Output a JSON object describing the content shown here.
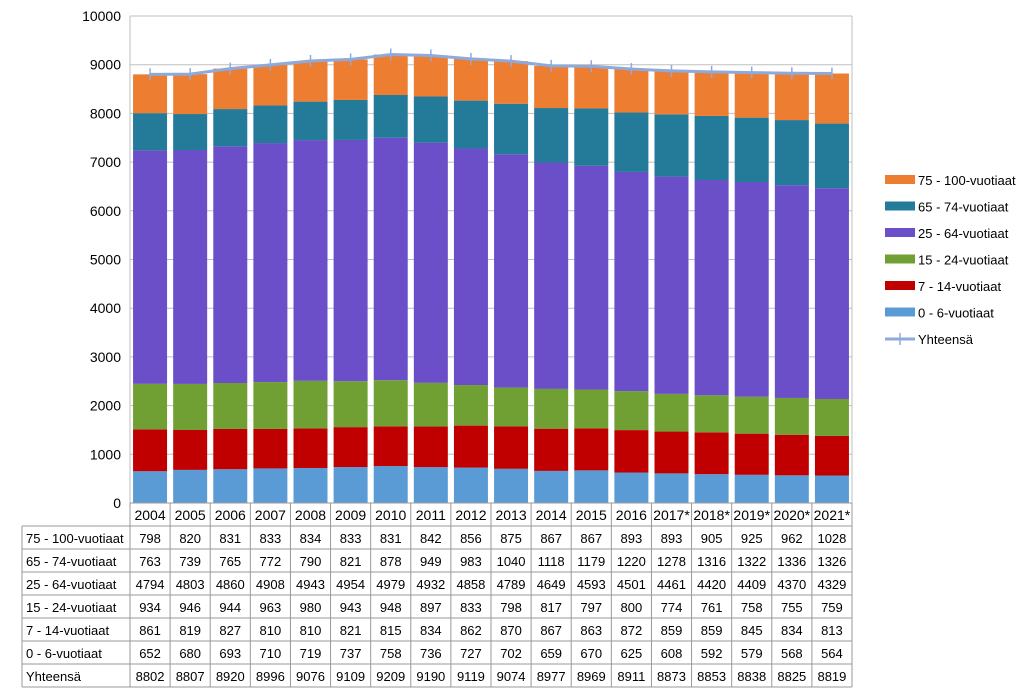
{
  "chart_data": {
    "type": "bar",
    "stacked": true,
    "categories": [
      "2004",
      "2005",
      "2006",
      "2007",
      "2008",
      "2009",
      "2010",
      "2011",
      "2012",
      "2013",
      "2014",
      "2015",
      "2016",
      "2017*",
      "2018*",
      "2019*",
      "2020*",
      "2021*"
    ],
    "ylim": [
      0,
      10000
    ],
    "yticks": [
      0,
      1000,
      2000,
      3000,
      4000,
      5000,
      6000,
      7000,
      8000,
      9000,
      10000
    ],
    "grid": true,
    "legend_position": "right",
    "series": [
      {
        "name": "0 - 6-vuotiaat",
        "color": "#5b9bd5",
        "values": [
          652,
          680,
          693,
          710,
          719,
          737,
          758,
          736,
          727,
          702,
          659,
          670,
          625,
          608,
          592,
          579,
          568,
          564
        ]
      },
      {
        "name": "7 - 14-vuotiaat",
        "color": "#c00000",
        "values": [
          861,
          819,
          827,
          810,
          810,
          821,
          815,
          834,
          862,
          870,
          867,
          863,
          872,
          859,
          859,
          845,
          834,
          813
        ]
      },
      {
        "name": "15 - 24-vuotiaat",
        "color": "#70a033",
        "values": [
          934,
          946,
          944,
          963,
          980,
          943,
          948,
          897,
          833,
          798,
          817,
          797,
          800,
          774,
          761,
          758,
          755,
          759
        ]
      },
      {
        "name": "25 - 64-vuotiaat",
        "color": "#6a4fc8",
        "values": [
          4794,
          4803,
          4860,
          4908,
          4943,
          4954,
          4979,
          4932,
          4858,
          4789,
          4649,
          4593,
          4501,
          4461,
          4420,
          4409,
          4370,
          4329
        ]
      },
      {
        "name": "65 - 74-vuotiaat",
        "color": "#237a99",
        "values": [
          763,
          739,
          765,
          772,
          790,
          821,
          878,
          949,
          983,
          1040,
          1118,
          1179,
          1220,
          1278,
          1316,
          1322,
          1336,
          1326
        ]
      },
      {
        "name": "75 - 100-vuotiaat",
        "color": "#ed7d31",
        "values": [
          798,
          820,
          831,
          833,
          834,
          833,
          831,
          842,
          856,
          875,
          867,
          867,
          893,
          893,
          905,
          925,
          962,
          1028
        ]
      }
    ],
    "total": {
      "name": "Yhteensä",
      "color": "#8eaadb",
      "values": [
        8802,
        8807,
        8920,
        8996,
        9076,
        9109,
        9209,
        9190,
        9119,
        9074,
        8977,
        8969,
        8911,
        8873,
        8853,
        8838,
        8825,
        8819
      ]
    },
    "table_rows_order": [
      "75 - 100-vuotiaat",
      "65 - 74-vuotiaat",
      "25 - 64-vuotiaat",
      "15 - 24-vuotiaat",
      "7 - 14-vuotiaat",
      "0 - 6-vuotiaat",
      "Yhteensä"
    ],
    "legend_order": [
      "75 - 100-vuotiaat",
      "65 - 74-vuotiaat",
      "25 - 64-vuotiaat",
      "15 - 24-vuotiaat",
      "7 - 14-vuotiaat",
      "0 - 6-vuotiaat",
      "Yhteensä"
    ]
  }
}
